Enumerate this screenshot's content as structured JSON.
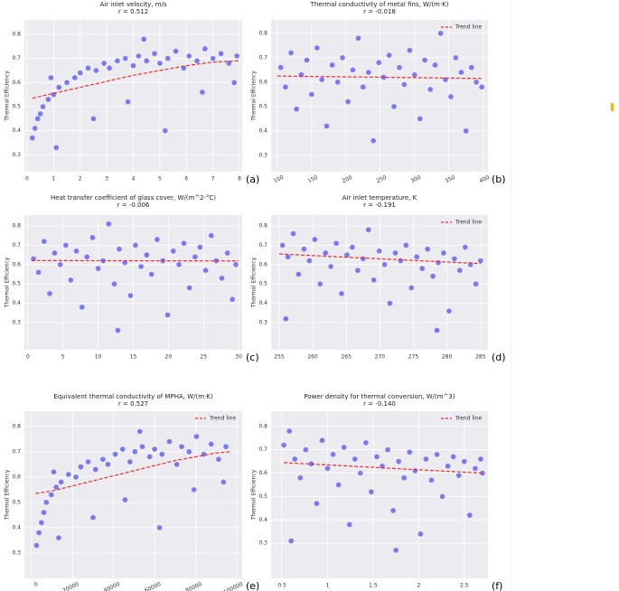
{
  "chart_data": [
    {
      "type": "scatter",
      "title": "Air inlet velocity, m/s",
      "subtitle": "r = 0.512",
      "y_label": "Thermal Efficiency",
      "panel_label": "(a)",
      "rotate_xticks": false,
      "grid": true,
      "xlim": [
        -0.1,
        8.1
      ],
      "xticks": [
        0,
        1,
        2,
        3,
        4,
        5,
        6,
        7,
        8
      ],
      "ylim": [
        0.23,
        0.86
      ],
      "yticks": [
        0.3,
        0.4,
        0.5,
        0.6,
        0.7,
        0.8
      ],
      "points": {
        "color": "#2b2bf0",
        "x": [
          0.2,
          0.3,
          0.4,
          0.5,
          0.6,
          0.8,
          1.0,
          1.2,
          1.5,
          1.8,
          2.0,
          2.3,
          2.6,
          2.9,
          3.1,
          3.4,
          3.7,
          4.0,
          4.2,
          4.5,
          4.8,
          5.0,
          5.3,
          5.6,
          5.9,
          6.1,
          6.4,
          6.7,
          7.0,
          7.3,
          7.6,
          7.9,
          1.1,
          2.5,
          3.8,
          5.2,
          6.6,
          7.8,
          0.9,
          4.4
        ],
        "values": [
          0.37,
          0.41,
          0.45,
          0.47,
          0.5,
          0.53,
          0.55,
          0.58,
          0.6,
          0.62,
          0.64,
          0.66,
          0.65,
          0.68,
          0.66,
          0.69,
          0.7,
          0.67,
          0.71,
          0.69,
          0.72,
          0.68,
          0.7,
          0.73,
          0.66,
          0.71,
          0.69,
          0.74,
          0.7,
          0.72,
          0.68,
          0.71,
          0.33,
          0.45,
          0.52,
          0.4,
          0.56,
          0.6,
          0.62,
          0.78
        ]
      },
      "trend": {
        "color": "#e83030",
        "x": [
          0.2,
          1,
          2,
          3,
          4,
          5,
          6,
          7,
          8
        ],
        "values": [
          0.535,
          0.555,
          0.58,
          0.605,
          0.63,
          0.65,
          0.67,
          0.685,
          0.69
        ]
      }
    },
    {
      "type": "scatter",
      "title": "Thermal conductivity of metal fins, W/(m·K)",
      "subtitle": "r = -0.018",
      "y_label": "Thermal Efficiency",
      "panel_label": "(b)",
      "rotate_xticks": true,
      "grid": true,
      "xlim": [
        91,
        407
      ],
      "xticks": [
        100,
        150,
        200,
        250,
        300,
        350,
        400
      ],
      "ylim": [
        0.233,
        0.855
      ],
      "yticks": [
        0.3,
        0.4,
        0.5,
        0.6,
        0.7,
        0.8
      ],
      "points": {
        "color": "#2b2bf0",
        "x": [
          105,
          112,
          120,
          128,
          135,
          143,
          150,
          158,
          165,
          172,
          180,
          188,
          195,
          203,
          210,
          218,
          225,
          233,
          240,
          248,
          255,
          263,
          270,
          278,
          285,
          293,
          300,
          308,
          315,
          323,
          330,
          338,
          345,
          353,
          360,
          368,
          375,
          383,
          390,
          398
        ],
        "values": [
          0.66,
          0.58,
          0.72,
          0.49,
          0.63,
          0.69,
          0.55,
          0.74,
          0.61,
          0.42,
          0.67,
          0.6,
          0.7,
          0.52,
          0.65,
          0.78,
          0.58,
          0.64,
          0.36,
          0.68,
          0.62,
          0.71,
          0.5,
          0.66,
          0.59,
          0.73,
          0.63,
          0.45,
          0.69,
          0.57,
          0.67,
          0.8,
          0.61,
          0.54,
          0.7,
          0.64,
          0.4,
          0.66,
          0.6,
          0.58
        ]
      },
      "trend": {
        "name": "Trend line",
        "color": "#e83030",
        "x": [
          100,
          400
        ],
        "values": [
          0.625,
          0.615
        ]
      }
    },
    {
      "type": "scatter",
      "title": "Heat transfer coefficient of glass cover, W/(m^2·°C)",
      "subtitle": "r = -0.006",
      "y_label": "Thermal Efficiency",
      "panel_label": "(c)",
      "rotate_xticks": false,
      "grid": true,
      "xlim": [
        -0.5,
        30.5
      ],
      "xticks": [
        0,
        5,
        10,
        15,
        20,
        25,
        30
      ],
      "ylim": [
        0.16,
        0.856
      ],
      "yticks": [
        0.3,
        0.4,
        0.5,
        0.6,
        0.7,
        0.8
      ],
      "points": {
        "color": "#2b2bf0",
        "x": [
          0.8,
          1.5,
          2.3,
          3.1,
          3.8,
          4.6,
          5.4,
          6.1,
          6.9,
          7.7,
          8.4,
          9.2,
          10,
          10.7,
          11.5,
          12.3,
          13,
          13.8,
          14.6,
          15.3,
          16.1,
          16.9,
          17.6,
          18.4,
          19.2,
          19.9,
          20.7,
          21.5,
          22.2,
          23,
          23.8,
          24.5,
          25.3,
          26.1,
          26.8,
          27.6,
          28.4,
          29.1,
          29.6,
          12.8
        ],
        "values": [
          0.63,
          0.56,
          0.72,
          0.45,
          0.66,
          0.6,
          0.7,
          0.52,
          0.67,
          0.38,
          0.64,
          0.74,
          0.58,
          0.62,
          0.81,
          0.5,
          0.68,
          0.61,
          0.44,
          0.7,
          0.59,
          0.65,
          0.55,
          0.73,
          0.62,
          0.34,
          0.67,
          0.6,
          0.71,
          0.48,
          0.64,
          0.69,
          0.57,
          0.75,
          0.62,
          0.53,
          0.66,
          0.42,
          0.6,
          0.26
        ]
      },
      "trend": {
        "color": "#e83030",
        "x": [
          0.5,
          30
        ],
        "values": [
          0.621,
          0.619
        ]
      }
    },
    {
      "type": "scatter",
      "title": "Air inlet temperature, K",
      "subtitle": "r = -0.191",
      "y_label": "Thermal Efficiency",
      "panel_label": "(d)",
      "rotate_xticks": false,
      "grid": true,
      "xlim": [
        253.8,
        286.1
      ],
      "xticks": [
        255,
        260,
        265,
        270,
        275,
        280,
        285
      ],
      "ylim": [
        0.16,
        0.856
      ],
      "yticks": [
        0.3,
        0.4,
        0.5,
        0.6,
        0.7,
        0.8
      ],
      "points": {
        "color": "#2b2bf0",
        "x": [
          255.5,
          256.3,
          257.1,
          257.9,
          258.7,
          259.5,
          260.3,
          261.1,
          261.9,
          262.7,
          263.5,
          264.3,
          265.1,
          265.9,
          266.7,
          267.5,
          268.3,
          269.1,
          269.9,
          270.7,
          271.5,
          272.3,
          273.1,
          273.9,
          274.7,
          275.5,
          276.3,
          277.1,
          277.9,
          278.7,
          279.5,
          280.3,
          281.1,
          281.9,
          282.7,
          283.5,
          284.3,
          285,
          256,
          278.5
        ],
        "values": [
          0.7,
          0.64,
          0.76,
          0.55,
          0.68,
          0.62,
          0.73,
          0.5,
          0.66,
          0.59,
          0.71,
          0.45,
          0.65,
          0.69,
          0.57,
          0.63,
          0.78,
          0.52,
          0.67,
          0.6,
          0.4,
          0.66,
          0.62,
          0.7,
          0.48,
          0.64,
          0.58,
          0.68,
          0.54,
          0.61,
          0.66,
          0.36,
          0.63,
          0.57,
          0.69,
          0.6,
          0.5,
          0.62,
          0.32,
          0.26
        ]
      },
      "trend": {
        "name": "Trend line",
        "color": "#e83030",
        "x": [
          255,
          285
        ],
        "values": [
          0.655,
          0.605
        ]
      }
    },
    {
      "type": "scatter",
      "title": "Equivalent thermal conductivity of MPHA, W/(m·K)",
      "subtitle": "r = 0.527",
      "y_label": "Thermal Efficiency",
      "panel_label": "(e)",
      "rotate_xticks": true,
      "grid": true,
      "xlim": [
        -3500,
        102700
      ],
      "xticks": [
        0,
        20000,
        40000,
        60000,
        80000,
        100000
      ],
      "ylim": [
        0.2,
        0.86
      ],
      "yticks": [
        0.3,
        0.4,
        0.5,
        0.6,
        0.7,
        0.8
      ],
      "points": {
        "color": "#2b2bf0",
        "x": [
          2400,
          3600,
          4800,
          6000,
          7200,
          9600,
          12000,
          14400,
          18000,
          21600,
          24000,
          27600,
          31200,
          34800,
          37200,
          40800,
          44400,
          48000,
          50400,
          54000,
          57600,
          60000,
          63600,
          67200,
          70800,
          73200,
          76800,
          80400,
          84000,
          87600,
          91200,
          94800,
          13200,
          30000,
          45600,
          62400,
          79200,
          93600,
          10800,
          52800
        ],
        "values": [
          0.33,
          0.38,
          0.42,
          0.46,
          0.5,
          0.53,
          0.56,
          0.58,
          0.61,
          0.6,
          0.64,
          0.66,
          0.63,
          0.67,
          0.65,
          0.69,
          0.71,
          0.66,
          0.7,
          0.72,
          0.68,
          0.71,
          0.69,
          0.74,
          0.65,
          0.72,
          0.7,
          0.76,
          0.69,
          0.73,
          0.67,
          0.72,
          0.36,
          0.44,
          0.51,
          0.4,
          0.55,
          0.58,
          0.62,
          0.78
        ]
      },
      "trend": {
        "name": "Trend line",
        "color": "#e83030",
        "x": [
          2000,
          10000,
          20000,
          30000,
          40000,
          50000,
          60000,
          70000,
          80000,
          90000,
          97000
        ],
        "values": [
          0.535,
          0.545,
          0.565,
          0.585,
          0.605,
          0.625,
          0.645,
          0.665,
          0.68,
          0.695,
          0.7
        ]
      }
    },
    {
      "type": "scatter",
      "title": "Power density for thermal conversion, W/(m^3)",
      "subtitle": "r = -0.140",
      "y_label": "Thermal Efficiency",
      "panel_label": "(f)",
      "rotate_xticks": false,
      "grid": true,
      "xlim": [
        0.38,
        2.76
      ],
      "xticks": [
        0.5,
        1.0,
        1.5,
        2.0,
        2.5
      ],
      "ylim": [
        0.15,
        0.865
      ],
      "yticks": [
        0.3,
        0.4,
        0.5,
        0.6,
        0.7,
        0.8
      ],
      "points": {
        "color": "#2b2bf0",
        "x": [
          0.52,
          0.58,
          0.64,
          0.7,
          0.76,
          0.82,
          0.88,
          0.94,
          1.0,
          1.06,
          1.12,
          1.18,
          1.24,
          1.3,
          1.36,
          1.42,
          1.48,
          1.54,
          1.6,
          1.66,
          1.72,
          1.78,
          1.84,
          1.9,
          1.96,
          2.02,
          2.08,
          2.14,
          2.2,
          2.26,
          2.32,
          2.38,
          2.44,
          2.5,
          2.56,
          2.62,
          2.68,
          2.7,
          0.6,
          1.75
        ],
        "values": [
          0.72,
          0.78,
          0.66,
          0.58,
          0.7,
          0.64,
          0.47,
          0.74,
          0.62,
          0.68,
          0.55,
          0.71,
          0.38,
          0.66,
          0.6,
          0.73,
          0.52,
          0.67,
          0.63,
          0.7,
          0.44,
          0.65,
          0.58,
          0.69,
          0.61,
          0.34,
          0.66,
          0.57,
          0.68,
          0.5,
          0.63,
          0.67,
          0.59,
          0.65,
          0.42,
          0.62,
          0.66,
          0.6,
          0.31,
          0.27
        ]
      },
      "trend": {
        "name": "Trend line",
        "color": "#e83030",
        "x": [
          0.52,
          2.7
        ],
        "values": [
          0.645,
          0.6
        ]
      }
    }
  ]
}
